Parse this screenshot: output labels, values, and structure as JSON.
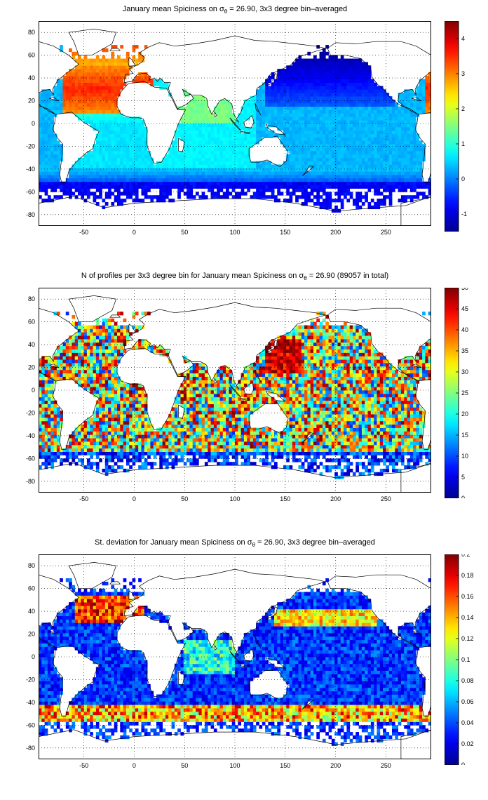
{
  "panels": [
    {
      "id": "spiciness",
      "title": {
        "pre": "January mean Spiciness on ",
        "sigma": "σ",
        "sub": "θ",
        "post": " = 26.90, 3x3 degree bin–averaged"
      },
      "colorbar": {
        "ticks": [
          -1,
          0,
          1,
          2,
          3,
          4
        ],
        "min": -1.5,
        "max": 4.5
      },
      "palette": "spice"
    },
    {
      "id": "profiles",
      "title": {
        "pre": "N of profiles per 3x3 degree bin for January mean Spiciness on ",
        "sigma": "σ",
        "sub": "θ",
        "post": " = 26.90 (89057 in total)"
      },
      "colorbar": {
        "ticks": [
          0,
          5,
          10,
          15,
          20,
          25,
          30,
          35,
          40,
          45,
          50
        ],
        "min": 0,
        "max": 50
      },
      "palette": "count"
    },
    {
      "id": "stdev",
      "title": {
        "pre": "St. deviation for January mean Spiciness on ",
        "sigma": "σ",
        "sub": "θ",
        "post": " = 26.90, 3x3 degree bin–averaged"
      },
      "colorbar": {
        "ticks": [
          0,
          0.02,
          0.04,
          0.06,
          0.08,
          0.1,
          0.12,
          0.14,
          0.16,
          0.18,
          0.2
        ],
        "min": 0,
        "max": 0.2
      },
      "palette": "std"
    }
  ],
  "axes": {
    "x_ticks": [
      -50,
      0,
      50,
      100,
      150,
      200,
      250
    ],
    "y_ticks": [
      80,
      60,
      40,
      20,
      0,
      -20,
      -40,
      -60,
      -80
    ],
    "x_range": [
      -95,
      295
    ],
    "y_range": [
      -90,
      90
    ]
  },
  "colors": {
    "jet": [
      "#00008f",
      "#0000ff",
      "#00ffff",
      "#ffff00",
      "#ff0000",
      "#800000"
    ],
    "coast": "#000000",
    "land": "#ffffff"
  }
}
